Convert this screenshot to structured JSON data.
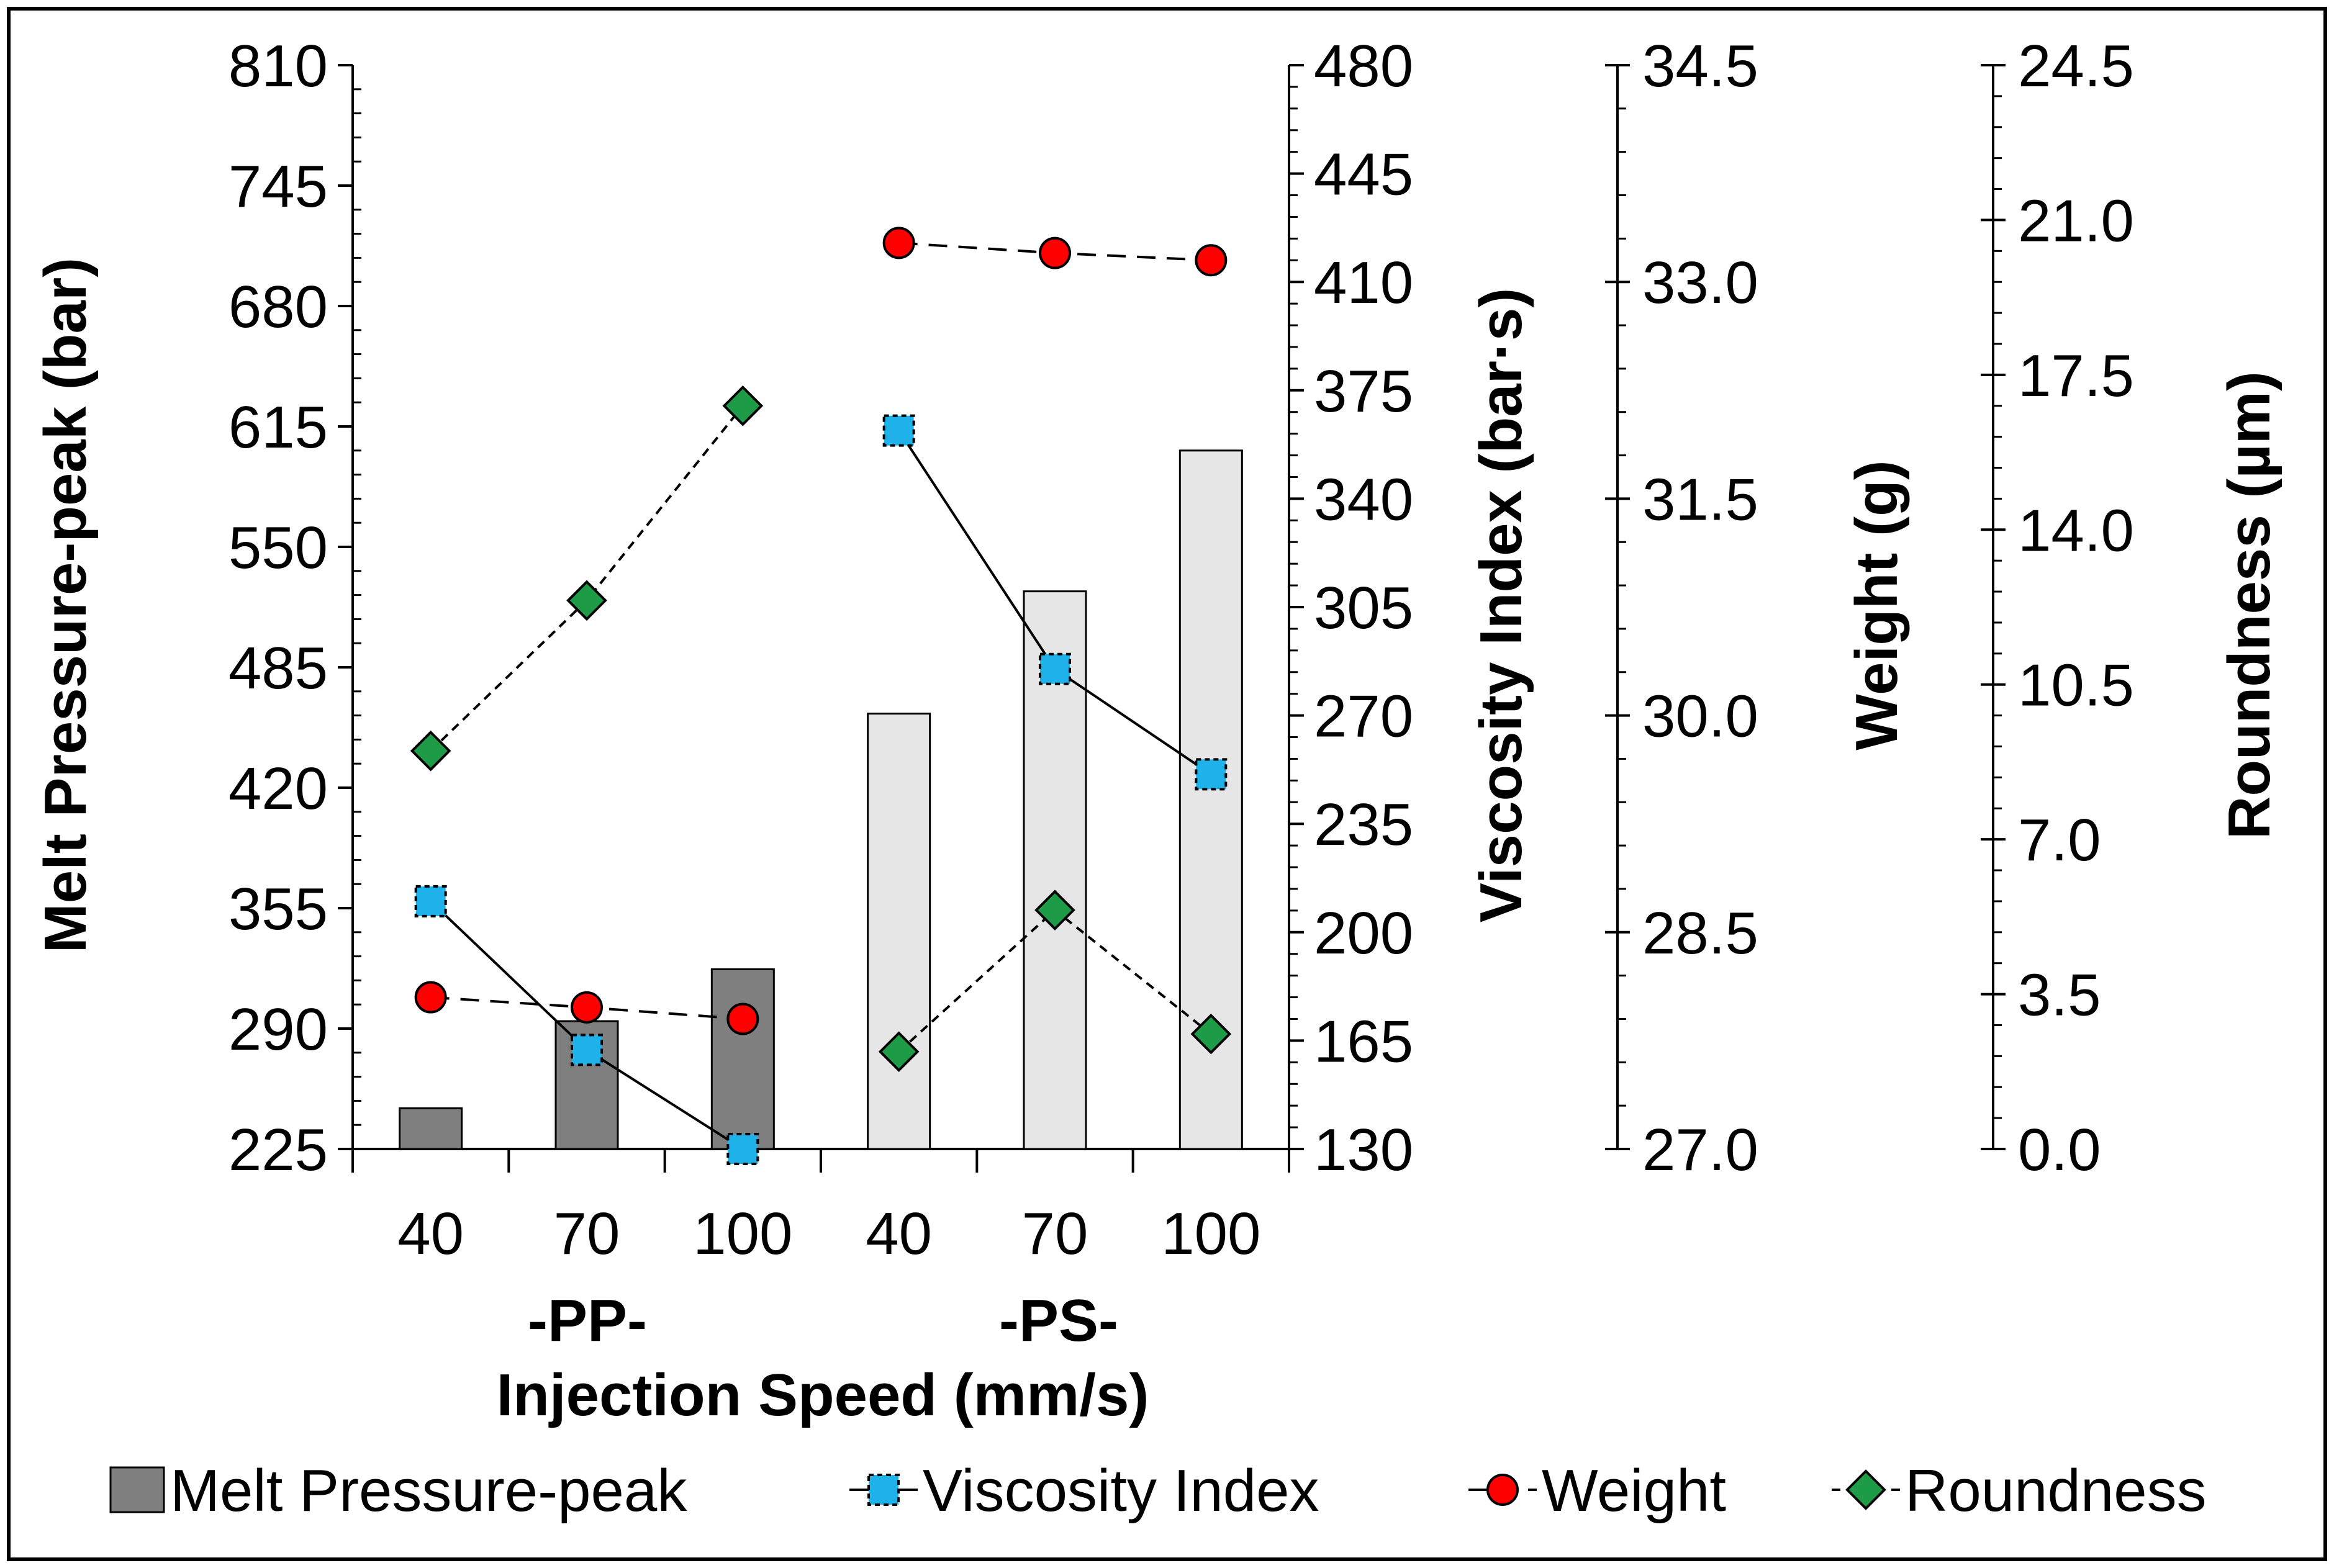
{
  "chart_data": {
    "type": "bar+line",
    "x_title": "Injection Speed (mm/s)",
    "groups": [
      {
        "label": "-PP-",
        "categories": [
          "40",
          "70",
          "100"
        ]
      },
      {
        "label": "-PS-",
        "categories": [
          "40",
          "70",
          "100"
        ]
      }
    ],
    "axes": {
      "pressure": {
        "title": "Melt Pressure-peak (bar)",
        "min": 225,
        "max": 810,
        "ticks": [
          "810",
          "745",
          "680",
          "615",
          "550",
          "485",
          "420",
          "355",
          "290",
          "225"
        ]
      },
      "viscosity": {
        "title": "Viscosity Index (bar·s)",
        "min": 130,
        "max": 480,
        "ticks": [
          "480",
          "445",
          "410",
          "375",
          "340",
          "305",
          "270",
          "235",
          "200",
          "165",
          "130"
        ]
      },
      "weight": {
        "title": "Weight (g)",
        "min": 27.0,
        "max": 34.5,
        "ticks": [
          "34.5",
          "33.0",
          "31.5",
          "30.0",
          "28.5",
          "27.0"
        ]
      },
      "roundness": {
        "title": "Roundness (µm)",
        "min": 0,
        "max": 24.5,
        "ticks": [
          "24.5",
          "21.0",
          "17.5",
          "14.0",
          "10.5",
          "7.0",
          "3.5",
          "0.0"
        ]
      }
    },
    "series": [
      {
        "name": "Melt Pressure-peak",
        "type": "bar",
        "axis": "pressure",
        "values": [
          247,
          294,
          322,
          460,
          526,
          602
        ],
        "colors": [
          "#7f7f7f",
          "#7f7f7f",
          "#7f7f7f",
          "#e6e6e6",
          "#e6e6e6",
          "#e6e6e6"
        ]
      },
      {
        "name": "Viscosity Index",
        "type": "line",
        "axis": "viscosity",
        "marker": "square",
        "color": "#1eb1ea",
        "dash": "solid",
        "values": [
          210,
          162,
          130,
          362,
          285,
          251
        ]
      },
      {
        "name": "Weight",
        "type": "line",
        "axis": "weight",
        "marker": "circle",
        "color": "#ff0000",
        "dash": "long-dash",
        "values": [
          28.05,
          27.98,
          27.9,
          33.27,
          33.2,
          33.15
        ]
      },
      {
        "name": "Roundness",
        "type": "line",
        "axis": "roundness",
        "marker": "diamond",
        "color": "#1e9b46",
        "dash": "short-dash",
        "values": [
          9.0,
          12.4,
          16.8,
          2.2,
          5.4,
          2.6
        ]
      }
    ],
    "legend": [
      "Melt Pressure-peak",
      "Viscosity Index",
      "Weight",
      "Roundness"
    ],
    "legend_position": "bottom"
  }
}
